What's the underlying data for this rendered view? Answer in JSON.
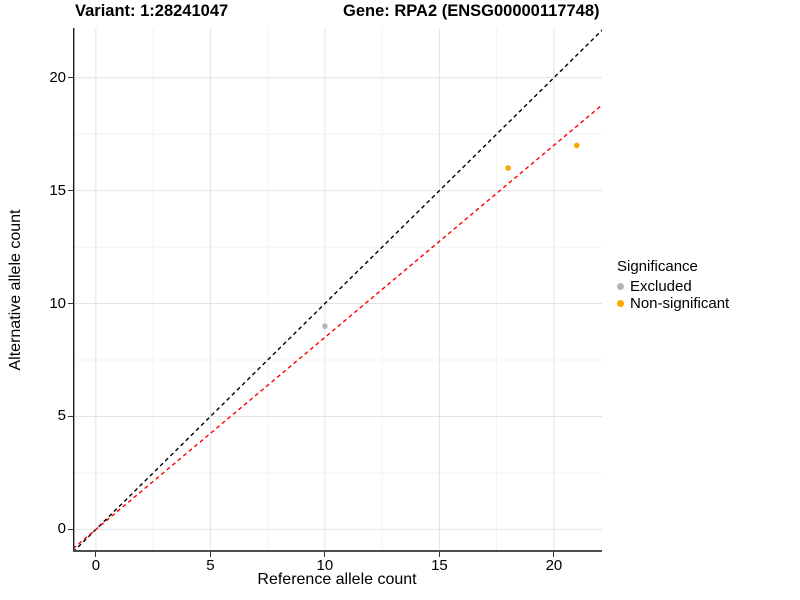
{
  "header": {
    "variant_title": "Variant: 1:28241047",
    "gene_title": "Gene: RPA2 (ENSG00000117748)"
  },
  "legend": {
    "title": "Significance",
    "items": [
      {
        "label": "Excluded",
        "color": "#b5b5b5"
      },
      {
        "label": "Non-significant",
        "color": "#ffa500"
      }
    ]
  },
  "colors": {
    "grid_major": "#e4e4e4",
    "grid_minor": "#f1f1f1",
    "axis_line_left": "#1a1a1a",
    "axis_line_bottom": "#4d4d4d",
    "tick_mark": "#333333",
    "identity_line": "#000000",
    "fit_line": "#ff0000",
    "excluded_point": "#b5b5b5",
    "non_significant_point": "#ffa500"
  },
  "chart_data": {
    "type": "scatter",
    "title_left": "Variant: 1:28241047",
    "title_right": "Gene: RPA2 (ENSG00000117748)",
    "xlabel": "Reference allele count",
    "ylabel": "Alternative allele count",
    "xlim": [
      -1,
      22.1
    ],
    "ylim": [
      -1,
      22.2
    ],
    "x_ticks": [
      0,
      5,
      10,
      15,
      20
    ],
    "y_ticks": [
      0,
      5,
      10,
      15,
      20
    ],
    "x_minor_gridlines": [
      2.5,
      7.5,
      12.5,
      17.5
    ],
    "y_minor_gridlines": [
      2.5,
      7.5,
      12.5,
      17.5
    ],
    "grid": true,
    "legend_position": "right",
    "legend_title": "Significance",
    "series": [
      {
        "name": "Excluded",
        "color": "#b5b5b5",
        "points": [
          {
            "x": 10,
            "y": 9
          }
        ]
      },
      {
        "name": "Non-significant",
        "color": "#ffa500",
        "points": [
          {
            "x": 18,
            "y": 16
          },
          {
            "x": 21,
            "y": 17
          }
        ]
      }
    ],
    "lines": [
      {
        "name": "identity-line",
        "description": "y = x reference line",
        "color": "#000000",
        "style": "dashed",
        "x1": -1,
        "y1": -1,
        "x2": 22.2,
        "y2": 22.2
      },
      {
        "name": "fit-line",
        "description": "fitted line through origin, slope 0.85",
        "color": "#ff0000",
        "style": "dashed",
        "x1": -1,
        "y1": -0.85,
        "x2": 22.1,
        "y2": 18.79
      }
    ]
  }
}
